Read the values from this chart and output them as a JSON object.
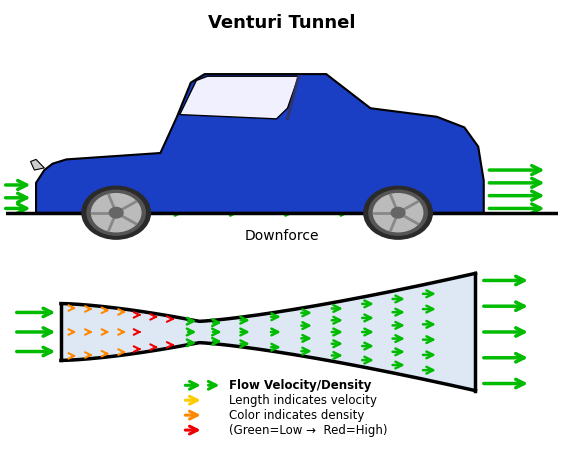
{
  "title": "Venturi Tunnel",
  "title_fontsize": 13,
  "title_fontweight": "bold",
  "downforce_label": "Downforce",
  "bg_color": "#ffffff",
  "car_body_color": "#1a3fc4",
  "car_outline_color": "#000000",
  "ground_color": "#000000",
  "arrow_green": "#00bb00",
  "arrow_orange": "#ff8800",
  "arrow_yellow": "#ffcc00",
  "arrow_red": "#ee0000",
  "tunnel_fill": "#dde8f4",
  "tunnel_outline": "#000000",
  "legend_green_label": "Flow Velocity/Density",
  "legend_yellow_label": "Length indicates velocity",
  "legend_orange_label": "Color indicates density",
  "legend_red_label": "(Green=Low →  Red=High)"
}
